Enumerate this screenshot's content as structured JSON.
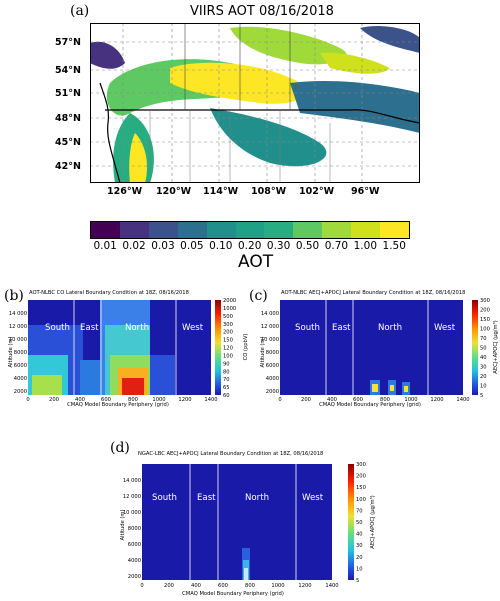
{
  "panel_a": {
    "letter": "(a)",
    "title": "VIIRS AOT 08/16/2018",
    "lat_ticks": [
      "57°N",
      "54°N",
      "51°N",
      "48°N",
      "45°N",
      "42°N"
    ],
    "lon_ticks": [
      "126°W",
      "120°W",
      "114°W",
      "108°W",
      "102°W",
      "96°W"
    ],
    "colorbar": {
      "ticks": [
        "0.01",
        "0.02",
        "0.03",
        "0.05",
        "0.10",
        "0.20",
        "0.30",
        "0.50",
        "0.70",
        "1.00",
        "1.50"
      ],
      "colors": [
        "#440154",
        "#46327e",
        "#3b528b",
        "#2d6f8e",
        "#21908d",
        "#1fa187",
        "#27ad81",
        "#5ec962",
        "#9fda3a",
        "#cfe11c",
        "#fde725"
      ],
      "label": "AOT"
    }
  },
  "panel_b": {
    "letter": "(b)",
    "title": "AOT-NLBC CO Lateral Boundary Condition at 18Z, 08/16/2018",
    "ylabel": "Altitude (m)",
    "xlabel": "CMAQ Model Boundary Periphery (grid)",
    "cblabel": "CO (ppbV)",
    "cb_ticks": [
      "2000",
      "1000",
      "500",
      "300",
      "200",
      "150",
      "120",
      "100",
      "90",
      "80",
      "70",
      "65",
      "60"
    ],
    "sections": [
      "South",
      "East",
      "North",
      "West"
    ]
  },
  "panel_c": {
    "letter": "(c)",
    "title": "AOT-NLBC AECJ+APOCJ Lateral Boundary Condition at 18Z, 08/16/2018",
    "ylabel": "Altitude (m)",
    "xlabel": "CMAQ Model Boundary Periphery (grid)",
    "cblabel": "AECJ+APOCJ (μg/m³)",
    "cb_ticks": [
      "300",
      "200",
      "150",
      "100",
      "70",
      "50",
      "40",
      "30",
      "20",
      "10",
      "5"
    ],
    "sections": [
      "South",
      "East",
      "North",
      "West"
    ]
  },
  "panel_d": {
    "letter": "(d)",
    "title": "NGAC-LBC AECJ+APOCJ Lateral Boundary Condition at 18Z, 08/16/2018",
    "ylabel": "Altitude (m)",
    "xlabel": "CMAQ Model Boundary Periphery (grid)",
    "cblabel": "AECJ+APOCJ (μg/m³)",
    "cb_ticks": [
      "300",
      "200",
      "150",
      "100",
      "70",
      "50",
      "40",
      "30",
      "20",
      "10",
      "5"
    ],
    "sections": [
      "South",
      "East",
      "North",
      "West"
    ]
  },
  "curtain_axes": {
    "x_ticks": [
      "0",
      "200",
      "400",
      "600",
      "800",
      "1000",
      "1200",
      "1400"
    ],
    "y_ticks": [
      "14 000",
      "12 000",
      "10 000",
      "8000",
      "6000",
      "4000",
      "2000"
    ]
  },
  "colors": {
    "curtain_background": "#1a1aa8",
    "cb_high": "#8b0000",
    "cb_low": "#1c1ca6"
  }
}
